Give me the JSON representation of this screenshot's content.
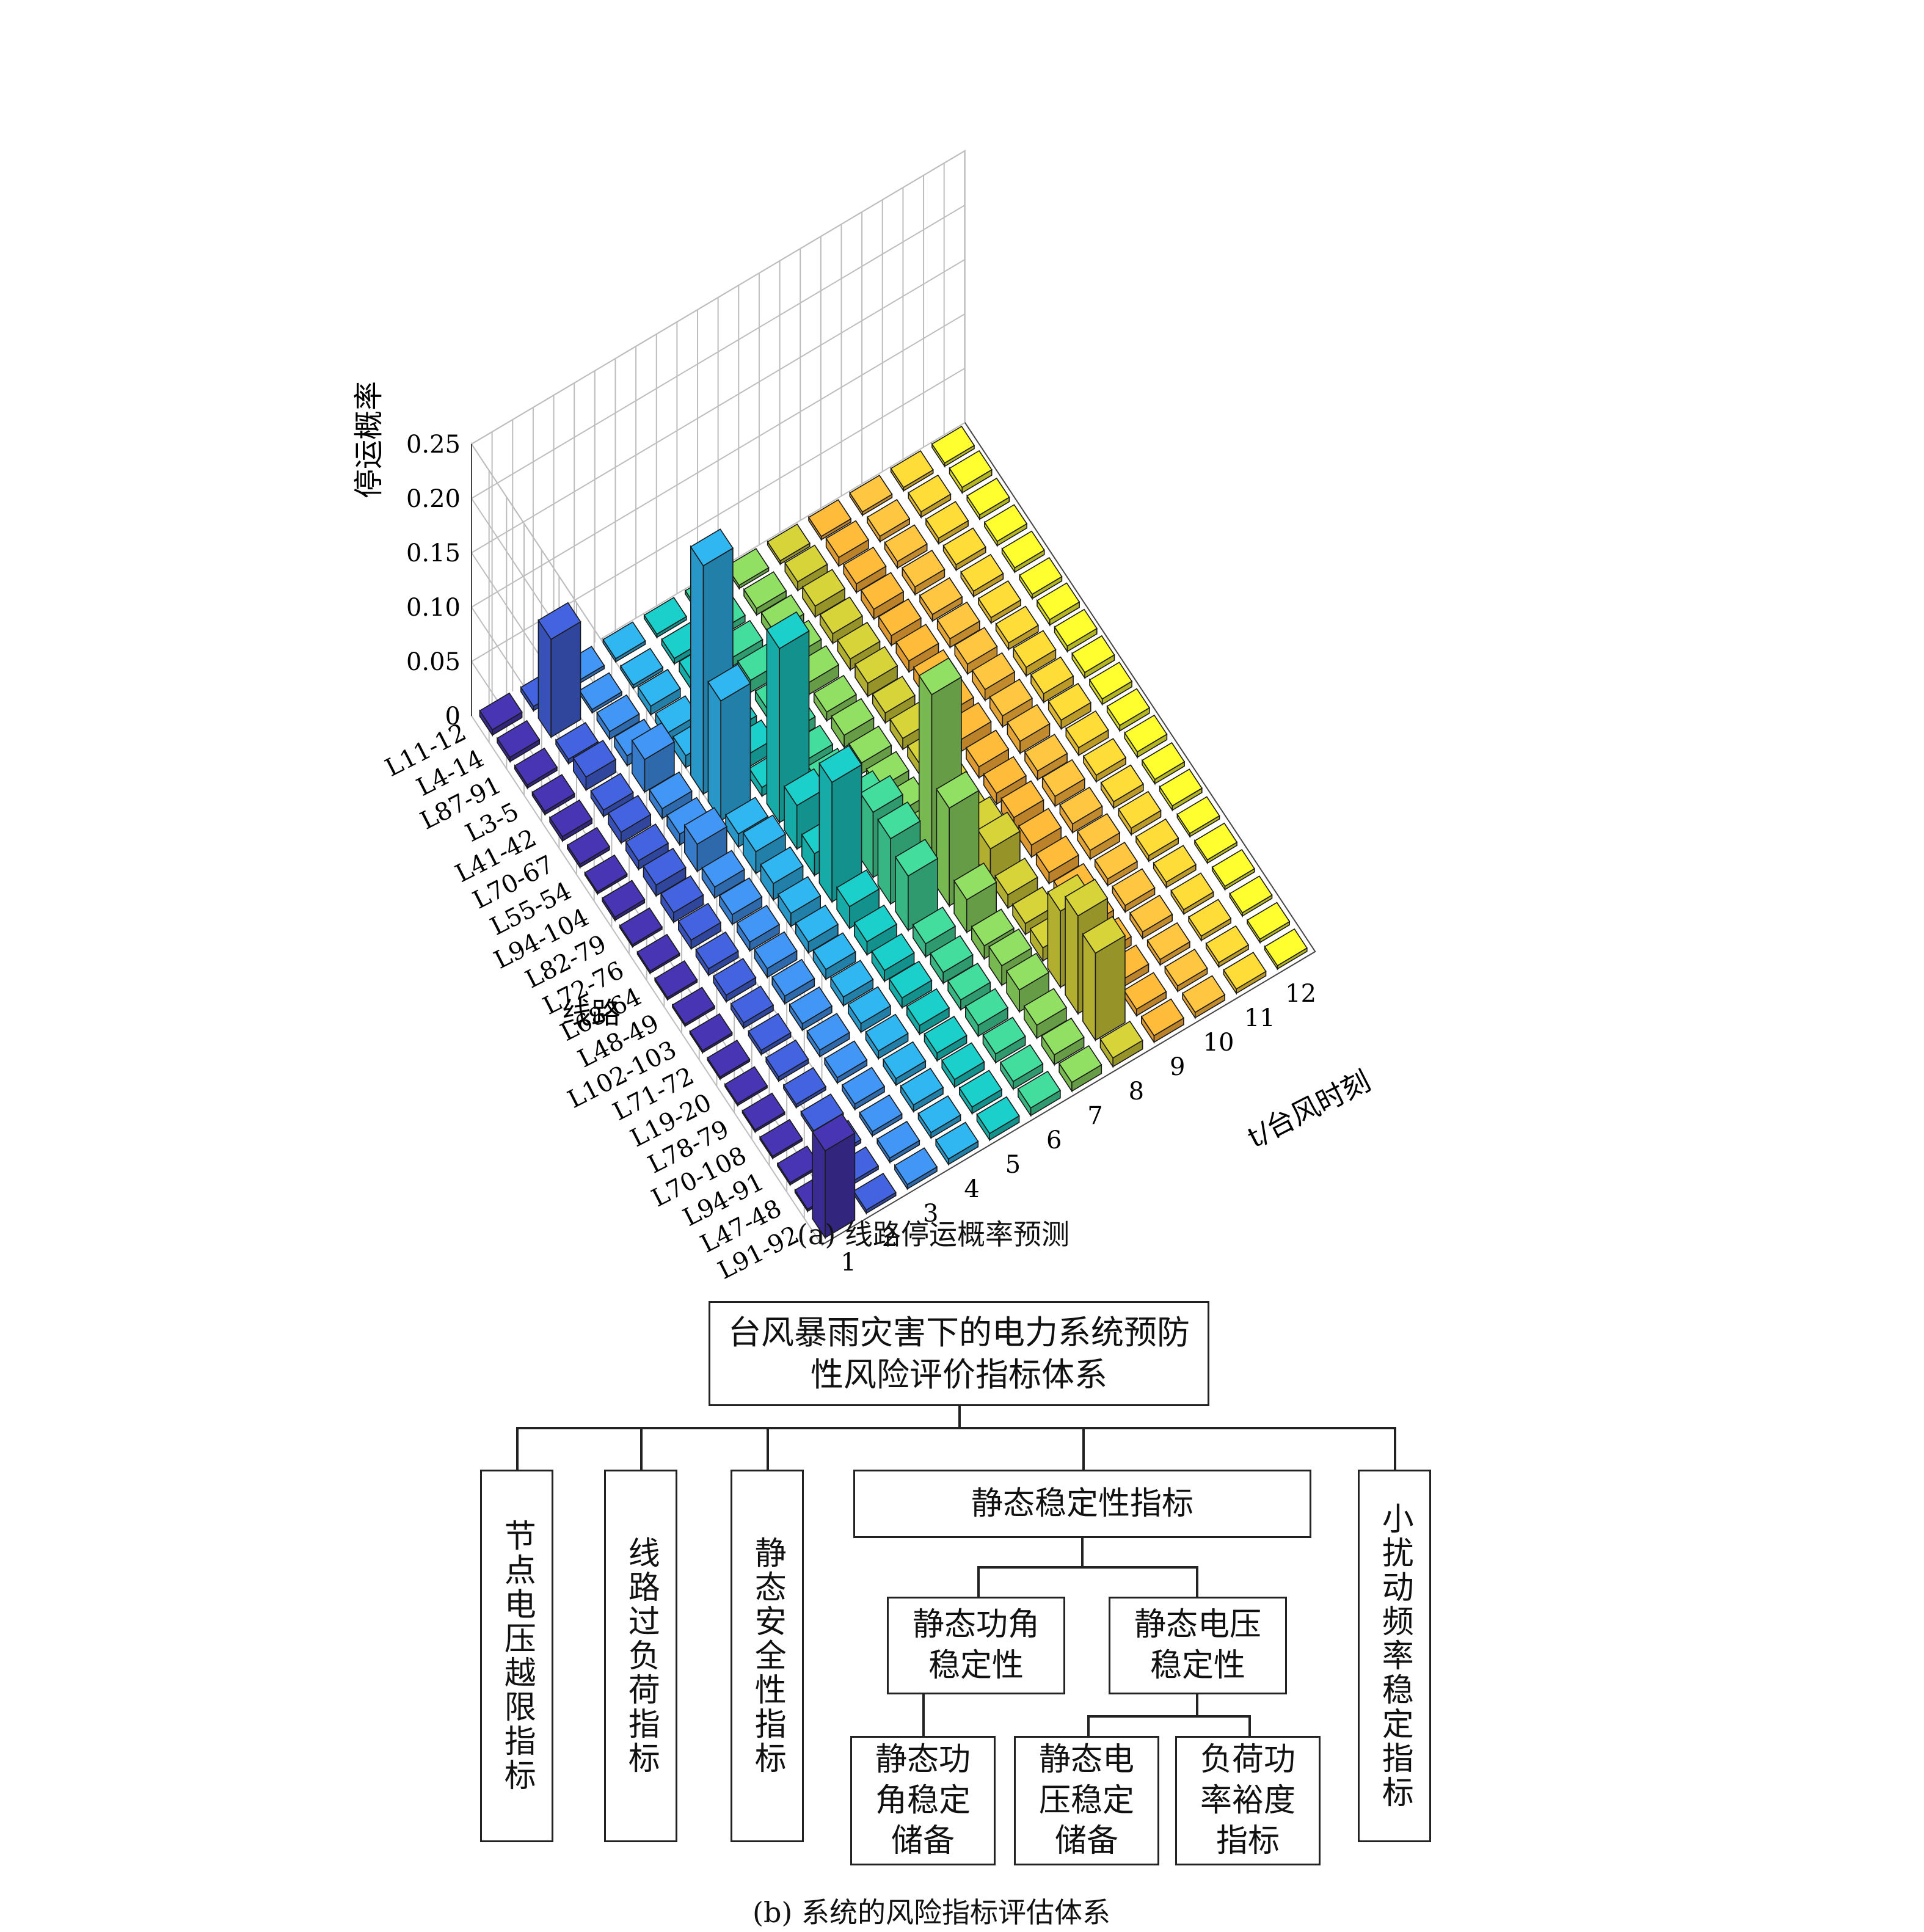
{
  "chart_data": {
    "type": "bar3d",
    "zlabel": "停运概率",
    "line_axis_label": "线路",
    "time_axis_label": "t/台风时刻",
    "zlim": [
      0,
      0.25
    ],
    "z_ticks": [
      "0",
      "0.05",
      "0.10",
      "0.15",
      "0.20",
      "0.25"
    ],
    "lines": [
      "L11-12",
      "L4-14",
      "L87-91",
      "L3-5",
      "L41-42",
      "L70-67",
      "L55-54",
      "L94-104",
      "L82-79",
      "L72-76",
      "L68-64",
      "L48-49",
      "L102-103",
      "L71-72",
      "L19-20",
      "L78-79",
      "L70-108",
      "L94-91",
      "L47-48",
      "L91-92"
    ],
    "times": [
      "1",
      "2",
      "3",
      "4",
      "5",
      "6",
      "7",
      "8",
      "9",
      "10",
      "11",
      "12"
    ],
    "colors": [
      "#3f2fa0",
      "#3d58c8",
      "#3b86dc",
      "#2ba3d8",
      "#18bab4",
      "#3cc58d",
      "#82c858",
      "#c0bd34",
      "#f1a734",
      "#f8b13a",
      "#f0c533",
      "#e5e82a"
    ],
    "values": [
      [
        0.005,
        0.004,
        0.003,
        0.003,
        0.003,
        0.003,
        0.003,
        0.003,
        0.003,
        0.003,
        0.003,
        0.003
      ],
      [
        0.004,
        0.09,
        0.003,
        0.003,
        0.005,
        0.006,
        0.006,
        0.008,
        0.008,
        0.005,
        0.005,
        0.005
      ],
      [
        0.003,
        0.004,
        0.007,
        0.008,
        0.009,
        0.008,
        0.009,
        0.01,
        0.008,
        0.006,
        0.005,
        0.004
      ],
      [
        0.003,
        0.012,
        0.009,
        0.008,
        0.009,
        0.011,
        0.01,
        0.009,
        0.009,
        0.007,
        0.005,
        0.004
      ],
      [
        0.004,
        0.006,
        0.03,
        0.011,
        0.009,
        0.008,
        0.011,
        0.01,
        0.009,
        0.006,
        0.005,
        0.004
      ],
      [
        0.003,
        0.01,
        0.009,
        0.21,
        0.012,
        0.01,
        0.008,
        0.012,
        0.01,
        0.008,
        0.005,
        0.004
      ],
      [
        0.002,
        0.008,
        0.01,
        0.11,
        0.008,
        0.009,
        0.011,
        0.009,
        0.011,
        0.009,
        0.006,
        0.005
      ],
      [
        0.003,
        0.01,
        0.025,
        0.012,
        0.16,
        0.012,
        0.01,
        0.01,
        0.009,
        0.01,
        0.008,
        0.005
      ],
      [
        0.002,
        0.009,
        0.01,
        0.02,
        0.04,
        0.012,
        0.011,
        0.01,
        0.011,
        0.01,
        0.008,
        0.005
      ],
      [
        0.002,
        0.008,
        0.009,
        0.015,
        0.02,
        0.04,
        0.012,
        0.011,
        0.01,
        0.011,
        0.008,
        0.005
      ],
      [
        0.002,
        0.006,
        0.008,
        0.012,
        0.11,
        0.06,
        0.012,
        0.01,
        0.01,
        0.008,
        0.007,
        0.005
      ],
      [
        0.002,
        0.006,
        0.008,
        0.01,
        0.02,
        0.06,
        0.17,
        0.02,
        0.012,
        0.009,
        0.006,
        0.005
      ],
      [
        0.002,
        0.005,
        0.007,
        0.009,
        0.012,
        0.05,
        0.09,
        0.03,
        0.011,
        0.008,
        0.006,
        0.004
      ],
      [
        0.002,
        0.004,
        0.006,
        0.008,
        0.01,
        0.012,
        0.03,
        0.012,
        0.01,
        0.008,
        0.006,
        0.004
      ],
      [
        0.002,
        0.004,
        0.006,
        0.008,
        0.009,
        0.01,
        0.012,
        0.01,
        0.009,
        0.006,
        0.005,
        0.003
      ],
      [
        0.002,
        0.003,
        0.005,
        0.007,
        0.008,
        0.009,
        0.018,
        0.012,
        0.008,
        0.006,
        0.005,
        0.003
      ],
      [
        0.002,
        0.003,
        0.005,
        0.006,
        0.007,
        0.01,
        0.02,
        0.07,
        0.008,
        0.006,
        0.004,
        0.003
      ],
      [
        0.002,
        0.003,
        0.004,
        0.006,
        0.007,
        0.008,
        0.012,
        0.09,
        0.007,
        0.005,
        0.004,
        0.003
      ],
      [
        0.002,
        0.003,
        0.004,
        0.005,
        0.006,
        0.007,
        0.009,
        0.08,
        0.006,
        0.005,
        0.004,
        0.003
      ],
      [
        0.08,
        0.003,
        0.004,
        0.005,
        0.006,
        0.007,
        0.008,
        0.008,
        0.006,
        0.005,
        0.004,
        0.003
      ]
    ]
  },
  "caption_a": "(a) 线路停运概率预测",
  "caption_b": "(b) 系统的风险指标评估体系",
  "tree": {
    "root": "台风暴雨灾害下的电力系统预防\n性风险评价指标体系",
    "node_voltage": "节点电压越限指标",
    "line_overload": "线路过负荷指标",
    "static_security": "静态安全性指标",
    "static_stability": "静态稳定性指标",
    "small_disturbance": "小扰动频率稳定指标",
    "angle_stability": "静态功角\n稳定性",
    "voltage_stability": "静态电压\n稳定性",
    "angle_reserve": "静态功\n角稳定\n储备",
    "voltage_reserve": "静态电\n压稳定\n储备",
    "load_margin": "负荷功\n率裕度\n指标"
  }
}
